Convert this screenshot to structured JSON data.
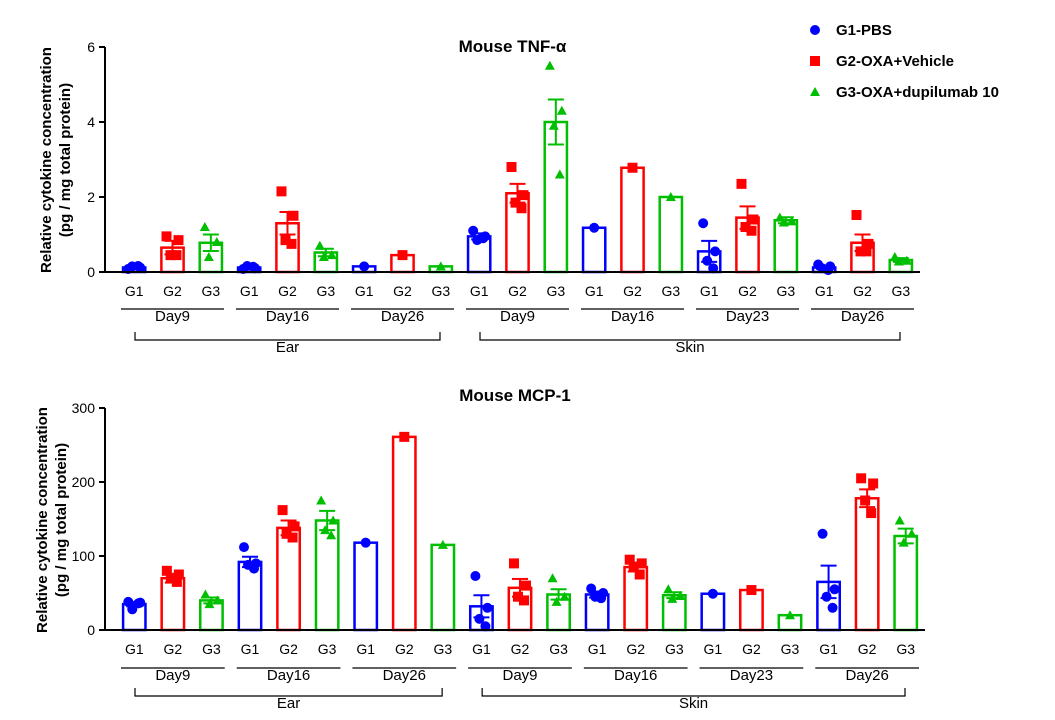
{
  "chart_data": [
    {
      "type": "bar",
      "title": "Mouse TNF-α",
      "ylabel_line1": "Relative cytokine concentration",
      "ylabel_line2": "(pg / mg total protein)",
      "ylim": [
        0,
        6
      ],
      "yticks": [
        0,
        2,
        4,
        6
      ],
      "groups": [
        {
          "tissue": "Ear",
          "days": [
            {
              "day": "Day9",
              "bars": [
                {
                  "group": "G1",
                  "mean": 0.12,
                  "sem": 0.03,
                  "points": [
                    0.08,
                    0.12,
                    0.15,
                    0.16
                  ]
                },
                {
                  "group": "G2",
                  "mean": 0.65,
                  "sem": 0.18,
                  "points": [
                    0.95,
                    0.85,
                    0.45,
                    0.45
                  ]
                },
                {
                  "group": "G3",
                  "mean": 0.78,
                  "sem": 0.22,
                  "points": [
                    1.2,
                    0.8,
                    0.4
                  ]
                }
              ]
            },
            {
              "day": "Day16",
              "bars": [
                {
                  "group": "G1",
                  "mean": 0.12,
                  "sem": 0.03,
                  "points": [
                    0.08,
                    0.1,
                    0.16,
                    0.14
                  ]
                },
                {
                  "group": "G2",
                  "mean": 1.3,
                  "sem": 0.3,
                  "points": [
                    2.15,
                    1.5,
                    0.85,
                    0.75
                  ]
                },
                {
                  "group": "G3",
                  "mean": 0.52,
                  "sem": 0.1,
                  "points": [
                    0.7,
                    0.45,
                    0.4
                  ]
                }
              ]
            },
            {
              "day": "Day26",
              "bars": [
                {
                  "group": "G1",
                  "mean": 0.15,
                  "sem": 0,
                  "points": [
                    0.15
                  ]
                },
                {
                  "group": "G2",
                  "mean": 0.45,
                  "sem": 0,
                  "points": [
                    0.45
                  ]
                },
                {
                  "group": "G3",
                  "mean": 0.15,
                  "sem": 0,
                  "points": [
                    0.15
                  ]
                }
              ]
            }
          ]
        },
        {
          "tissue": "Skin",
          "days": [
            {
              "day": "Day9",
              "bars": [
                {
                  "group": "G1",
                  "mean": 0.95,
                  "sem": 0.08,
                  "points": [
                    1.1,
                    0.95,
                    0.85,
                    0.9
                  ]
                },
                {
                  "group": "G2",
                  "mean": 2.1,
                  "sem": 0.25,
                  "points": [
                    2.8,
                    2.05,
                    1.85,
                    1.7
                  ]
                },
                {
                  "group": "G3",
                  "mean": 4.0,
                  "sem": 0.6,
                  "points": [
                    5.5,
                    4.3,
                    3.9,
                    2.6
                  ]
                }
              ]
            },
            {
              "day": "Day16",
              "bars": [
                {
                  "group": "G1",
                  "mean": 1.18,
                  "sem": 0,
                  "points": [
                    1.18
                  ]
                },
                {
                  "group": "G2",
                  "mean": 2.78,
                  "sem": 0,
                  "points": [
                    2.78
                  ]
                },
                {
                  "group": "G3",
                  "mean": 2.0,
                  "sem": 0,
                  "points": [
                    2.0
                  ]
                }
              ]
            },
            {
              "day": "Day23",
              "bars": [
                {
                  "group": "G1",
                  "mean": 0.55,
                  "sem": 0.28,
                  "points": [
                    1.3,
                    0.55,
                    0.3,
                    0.1
                  ]
                },
                {
                  "group": "G2",
                  "mean": 1.45,
                  "sem": 0.3,
                  "points": [
                    2.35,
                    1.4,
                    1.2,
                    1.1
                  ]
                },
                {
                  "group": "G3",
                  "mean": 1.38,
                  "sem": 0.08,
                  "points": [
                    1.45,
                    1.35,
                    1.32
                  ]
                }
              ]
            },
            {
              "day": "Day26",
              "bars": [
                {
                  "group": "G1",
                  "mean": 0.12,
                  "sem": 0.04,
                  "points": [
                    0.2,
                    0.15,
                    0.1,
                    0.05
                  ]
                },
                {
                  "group": "G2",
                  "mean": 0.78,
                  "sem": 0.22,
                  "points": [
                    1.52,
                    0.75,
                    0.55,
                    0.55
                  ]
                },
                {
                  "group": "G3",
                  "mean": 0.32,
                  "sem": 0.05,
                  "points": [
                    0.4,
                    0.3,
                    0.28
                  ]
                }
              ]
            }
          ]
        }
      ]
    },
    {
      "type": "bar",
      "title": "Mouse MCP-1",
      "ylabel_line1": "Relative cytokine concentration",
      "ylabel_line2": "(pg / mg total protein)",
      "ylim": [
        0,
        300
      ],
      "yticks": [
        0,
        100,
        200,
        300
      ],
      "groups": [
        {
          "tissue": "Ear",
          "days": [
            {
              "day": "Day9",
              "bars": [
                {
                  "group": "G1",
                  "mean": 35,
                  "sem": 3,
                  "points": [
                    38,
                    37,
                    28,
                    36
                  ]
                },
                {
                  "group": "G2",
                  "mean": 70,
                  "sem": 6,
                  "points": [
                    80,
                    75,
                    70,
                    65
                  ]
                },
                {
                  "group": "G3",
                  "mean": 40,
                  "sem": 4,
                  "points": [
                    48,
                    40,
                    35
                  ]
                }
              ]
            },
            {
              "day": "Day16",
              "bars": [
                {
                  "group": "G1",
                  "mean": 92,
                  "sem": 7,
                  "points": [
                    112,
                    90,
                    88,
                    83
                  ]
                },
                {
                  "group": "G2",
                  "mean": 138,
                  "sem": 10,
                  "points": [
                    162,
                    140,
                    130,
                    125
                  ]
                },
                {
                  "group": "G3",
                  "mean": 148,
                  "sem": 13,
                  "points": [
                    175,
                    148,
                    135,
                    128
                  ]
                }
              ]
            },
            {
              "day": "Day26",
              "bars": [
                {
                  "group": "G1",
                  "mean": 118,
                  "sem": 0,
                  "points": [
                    118
                  ]
                },
                {
                  "group": "G2",
                  "mean": 261,
                  "sem": 0,
                  "points": [
                    261
                  ]
                },
                {
                  "group": "G3",
                  "mean": 115,
                  "sem": 0,
                  "points": [
                    115
                  ]
                }
              ]
            }
          ]
        },
        {
          "tissue": "Skin",
          "days": [
            {
              "day": "Day9",
              "bars": [
                {
                  "group": "G1",
                  "mean": 32,
                  "sem": 15,
                  "points": [
                    73,
                    30,
                    15,
                    5
                  ]
                },
                {
                  "group": "G2",
                  "mean": 57,
                  "sem": 12,
                  "points": [
                    90,
                    60,
                    45,
                    40
                  ]
                },
                {
                  "group": "G3",
                  "mean": 48,
                  "sem": 7,
                  "points": [
                    70,
                    45,
                    38
                  ]
                }
              ]
            },
            {
              "day": "Day16",
              "bars": [
                {
                  "group": "G1",
                  "mean": 48,
                  "sem": 4,
                  "points": [
                    56,
                    50,
                    45,
                    43
                  ]
                },
                {
                  "group": "G2",
                  "mean": 85,
                  "sem": 6,
                  "points": [
                    95,
                    90,
                    85,
                    75
                  ]
                },
                {
                  "group": "G3",
                  "mean": 47,
                  "sem": 4,
                  "points": [
                    55,
                    46,
                    42
                  ]
                }
              ]
            },
            {
              "day": "Day23",
              "bars": [
                {
                  "group": "G1",
                  "mean": 49,
                  "sem": 0,
                  "points": [
                    49
                  ]
                },
                {
                  "group": "G2",
                  "mean": 54,
                  "sem": 0,
                  "points": [
                    54
                  ]
                },
                {
                  "group": "G3",
                  "mean": 20,
                  "sem": 0,
                  "points": [
                    20
                  ]
                }
              ]
            },
            {
              "day": "Day26",
              "bars": [
                {
                  "group": "G1",
                  "mean": 65,
                  "sem": 22,
                  "points": [
                    130,
                    55,
                    45,
                    30
                  ]
                },
                {
                  "group": "G2",
                  "mean": 178,
                  "sem": 12,
                  "points": [
                    205,
                    198,
                    175,
                    158
                  ]
                },
                {
                  "group": "G3",
                  "mean": 127,
                  "sem": 10,
                  "points": [
                    148,
                    130,
                    118
                  ]
                }
              ]
            }
          ]
        }
      ]
    }
  ],
  "legend": {
    "position": "top-right",
    "items": [
      {
        "group": "G1",
        "label": "G1-PBS",
        "color": "#0000ff",
        "marker": "circle"
      },
      {
        "group": "G2",
        "label": "G2-OXA+Vehicle",
        "color": "#ff0000",
        "marker": "square"
      },
      {
        "group": "G3",
        "label": "G3-OXA+dupilumab 10",
        "color": "#00bf00",
        "marker": "triangle"
      }
    ]
  },
  "colors": {
    "G1": "#0000ff",
    "G2": "#ff0000",
    "G3": "#00bf00",
    "axis": "#000000"
  }
}
